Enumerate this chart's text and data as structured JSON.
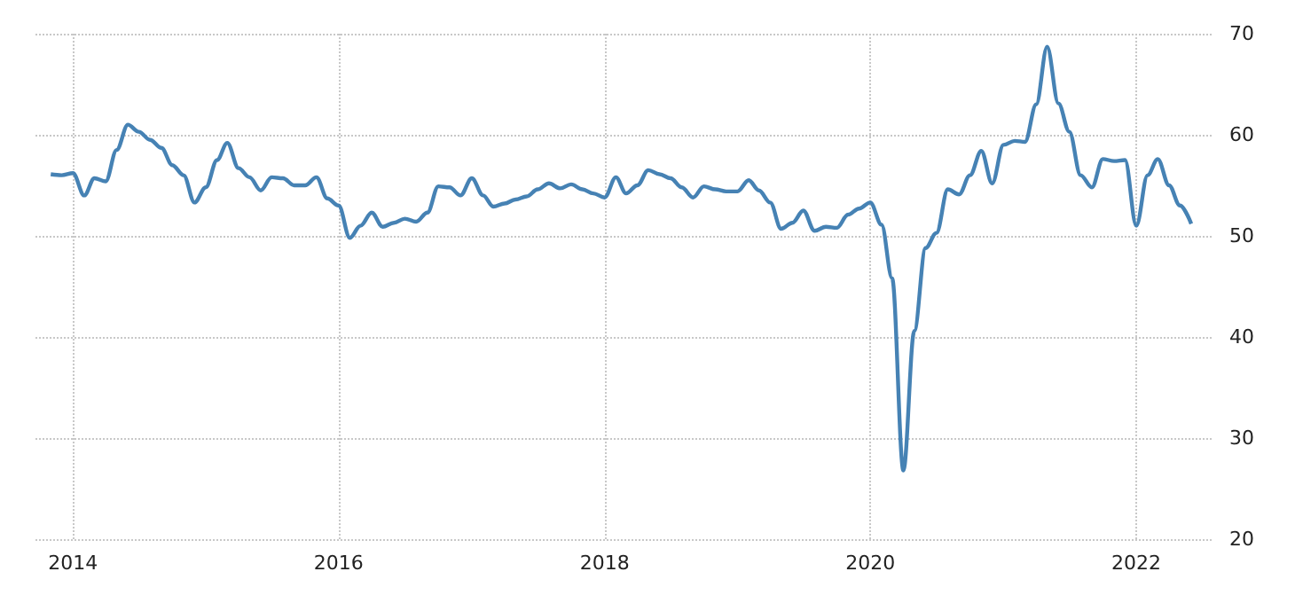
{
  "chart_data": {
    "type": "line",
    "color": "#4682b4",
    "x": [
      "2013-11",
      "2013-12",
      "2014-01",
      "2014-02",
      "2014-03",
      "2014-04",
      "2014-05",
      "2014-06",
      "2014-07",
      "2014-08",
      "2014-09",
      "2014-10",
      "2014-11",
      "2014-12",
      "2015-01",
      "2015-02",
      "2015-03",
      "2015-04",
      "2015-05",
      "2015-06",
      "2015-07",
      "2015-08",
      "2015-09",
      "2015-10",
      "2015-11",
      "2015-12",
      "2016-01",
      "2016-02",
      "2016-03",
      "2016-04",
      "2016-05",
      "2016-06",
      "2016-07",
      "2016-08",
      "2016-09",
      "2016-10",
      "2016-11",
      "2016-12",
      "2017-01",
      "2017-02",
      "2017-03",
      "2017-04",
      "2017-05",
      "2017-06",
      "2017-07",
      "2017-08",
      "2017-09",
      "2017-10",
      "2017-11",
      "2017-12",
      "2018-01",
      "2018-02",
      "2018-03",
      "2018-04",
      "2018-05",
      "2018-06",
      "2018-07",
      "2018-08",
      "2018-09",
      "2018-10",
      "2018-11",
      "2018-12",
      "2019-01",
      "2019-02",
      "2019-03",
      "2019-04",
      "2019-05",
      "2019-06",
      "2019-07",
      "2019-08",
      "2019-09",
      "2019-10",
      "2019-11",
      "2019-12",
      "2020-01",
      "2020-02",
      "2020-03",
      "2020-04",
      "2020-05",
      "2020-06",
      "2020-07",
      "2020-08",
      "2020-09",
      "2020-10",
      "2020-11",
      "2020-12",
      "2021-01",
      "2021-02",
      "2021-03",
      "2021-04",
      "2021-05",
      "2021-06",
      "2021-07",
      "2021-08",
      "2021-09",
      "2021-10",
      "2021-11",
      "2021-12",
      "2022-01",
      "2022-02",
      "2022-03",
      "2022-04",
      "2022-05",
      "2022-06"
    ],
    "values": [
      56.1,
      56.0,
      56.2,
      54.0,
      55.7,
      55.4,
      58.5,
      61.0,
      60.3,
      59.5,
      58.7,
      57.0,
      56.0,
      53.3,
      54.8,
      57.5,
      59.2,
      56.7,
      55.8,
      54.5,
      55.8,
      55.7,
      55.0,
      55.0,
      55.8,
      53.7,
      53.0,
      49.8,
      51.0,
      52.3,
      50.9,
      51.3,
      51.7,
      51.4,
      52.3,
      54.9,
      54.8,
      54.0,
      55.7,
      54.0,
      52.9,
      53.2,
      53.6,
      53.9,
      54.6,
      55.2,
      54.7,
      55.1,
      54.6,
      54.2,
      53.8,
      55.8,
      54.2,
      55.0,
      56.5,
      56.1,
      55.7,
      54.8,
      53.8,
      54.9,
      54.6,
      54.4,
      54.4,
      55.5,
      54.5,
      53.3,
      50.7,
      51.3,
      52.5,
      50.5,
      50.9,
      50.8,
      52.1,
      52.7,
      53.3,
      51.1,
      45.8,
      26.8,
      40.6,
      48.8,
      50.3,
      54.6,
      54.1,
      56.0,
      58.4,
      55.2,
      59.0,
      59.4,
      59.3,
      63.0,
      68.7,
      63.1,
      60.3,
      56.0,
      54.8,
      57.6,
      57.4,
      57.5,
      51.0,
      56.0,
      57.6,
      55.0,
      53.0,
      51.2
    ],
    "xlim": [
      "2013-09-20",
      "2022-07-27"
    ],
    "xticks": [
      "2014",
      "2016",
      "2018",
      "2020",
      "2022"
    ],
    "ylim": [
      20,
      70
    ],
    "yticks": [
      20,
      30,
      40,
      50,
      60,
      70
    ],
    "grid": true
  }
}
